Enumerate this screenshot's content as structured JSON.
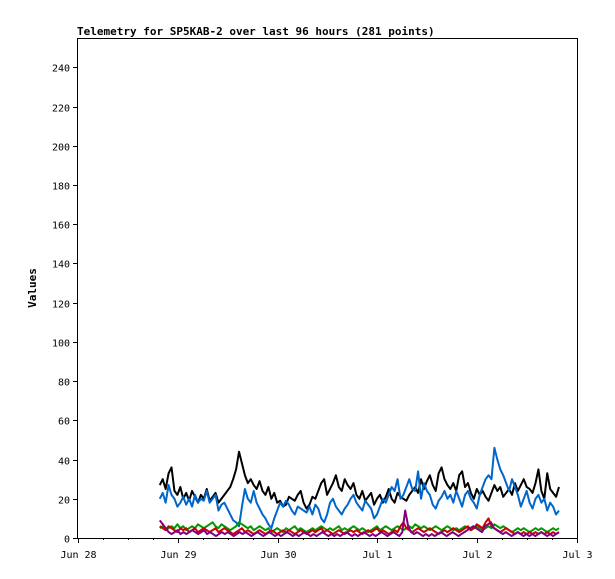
{
  "chart_data": {
    "type": "line",
    "title": "Telemetry for SP5KAB-2 over last 96 hours (281 points)",
    "xlabel": "",
    "ylabel": "Values",
    "ylim": [
      0,
      255
    ],
    "yticks": [
      0,
      20,
      40,
      60,
      80,
      100,
      120,
      140,
      160,
      180,
      200,
      220,
      240
    ],
    "xlim": [
      "Jun 28 00:00",
      "Jul 3 00:00"
    ],
    "xticks": [
      "Jun 28",
      "Jun 29",
      "Jun 30",
      "Jul 1",
      "Jul 2",
      "Jul 3"
    ],
    "grid": false,
    "legend": "none",
    "series": [
      {
        "color": "#000000",
        "x_start": "Jun 28 19:40",
        "x_end": "Jul 2 19:40",
        "values": [
          27,
          30,
          25,
          33,
          36,
          24,
          22,
          26,
          20,
          23,
          19,
          24,
          21,
          18,
          22,
          20,
          25,
          19,
          21,
          23,
          18,
          20,
          22,
          24,
          26,
          30,
          35,
          44,
          38,
          32,
          28,
          30,
          27,
          25,
          29,
          24,
          22,
          26,
          20,
          23,
          18,
          19,
          16,
          17,
          21,
          20,
          19,
          22,
          24,
          18,
          15,
          17,
          21,
          20,
          24,
          28,
          30,
          22,
          25,
          28,
          32,
          26,
          24,
          30,
          27,
          25,
          28,
          22,
          20,
          24,
          19,
          21,
          23,
          17,
          20,
          22,
          18,
          21,
          25,
          20,
          18,
          23,
          21,
          20,
          19,
          22,
          24,
          26,
          23,
          30,
          25,
          29,
          32,
          27,
          24,
          33,
          36,
          30,
          27,
          25,
          28,
          24,
          32,
          34,
          26,
          28,
          23,
          20,
          25,
          22,
          24,
          21,
          19,
          23,
          27,
          24,
          26,
          21,
          23,
          25,
          22,
          28,
          24,
          27,
          30,
          26,
          25,
          23,
          28,
          35,
          24,
          20,
          33,
          25,
          23,
          21,
          26
        ]
      },
      {
        "color": "#0066cc",
        "x_start": "Jun 28 19:40",
        "x_end": "Jul 2 19:40",
        "values": [
          20,
          23,
          18,
          27,
          22,
          20,
          16,
          18,
          21,
          17,
          20,
          16,
          22,
          18,
          20,
          19,
          24,
          18,
          20,
          22,
          14,
          17,
          18,
          15,
          12,
          9,
          8,
          6,
          16,
          25,
          20,
          18,
          24,
          18,
          15,
          12,
          10,
          7,
          5,
          10,
          14,
          18,
          16,
          19,
          17,
          14,
          12,
          16,
          15,
          14,
          13,
          16,
          12,
          17,
          15,
          10,
          8,
          12,
          18,
          20,
          16,
          14,
          12,
          15,
          17,
          20,
          22,
          18,
          16,
          14,
          19,
          17,
          15,
          10,
          12,
          16,
          20,
          18,
          22,
          26,
          24,
          30,
          20,
          22,
          26,
          30,
          25,
          24,
          34,
          20,
          28,
          24,
          22,
          17,
          15,
          19,
          21,
          24,
          20,
          22,
          18,
          24,
          20,
          16,
          22,
          24,
          20,
          18,
          15,
          22,
          26,
          30,
          32,
          30,
          46,
          40,
          35,
          32,
          28,
          24,
          30,
          26,
          22,
          16,
          20,
          24,
          18,
          15,
          20,
          22,
          18,
          20,
          14,
          18,
          16,
          12,
          14
        ]
      },
      {
        "color": "#009900",
        "x_start": "Jun 28 19:40",
        "x_end": "Jul 2 19:40",
        "values": [
          5,
          6,
          4,
          5,
          6,
          5,
          7,
          5,
          6,
          4,
          5,
          6,
          5,
          7,
          6,
          5,
          6,
          7,
          8,
          6,
          5,
          7,
          6,
          5,
          4,
          5,
          6,
          8,
          7,
          6,
          5,
          6,
          4,
          5,
          6,
          5,
          4,
          5,
          3,
          4,
          5,
          4,
          3,
          5,
          4,
          5,
          6,
          4,
          5,
          4,
          3,
          4,
          5,
          4,
          5,
          6,
          5,
          4,
          5,
          4,
          5,
          6,
          4,
          5,
          4,
          5,
          6,
          5,
          4,
          5,
          4,
          3,
          4,
          5,
          6,
          4,
          5,
          6,
          5,
          4,
          5,
          6,
          5,
          4,
          5,
          6,
          5,
          7,
          6,
          5,
          6,
          5,
          4,
          5,
          6,
          5,
          4,
          5,
          6,
          5,
          4,
          5,
          4,
          5,
          6,
          5,
          4,
          5,
          6,
          5,
          4,
          5,
          6,
          5,
          7,
          6,
          5,
          6,
          5,
          4,
          3,
          4,
          5,
          4,
          5,
          4,
          3,
          4,
          5,
          4,
          5,
          4,
          3,
          4,
          5,
          4,
          5
        ]
      },
      {
        "color": "#cc0000",
        "x_start": "Jun 28 19:40",
        "x_end": "Jul 2 19:40",
        "values": [
          6,
          5,
          4,
          6,
          5,
          4,
          3,
          5,
          4,
          5,
          3,
          4,
          5,
          3,
          4,
          5,
          4,
          3,
          4,
          5,
          3,
          4,
          5,
          4,
          3,
          2,
          3,
          4,
          5,
          3,
          4,
          3,
          2,
          3,
          4,
          3,
          2,
          3,
          4,
          3,
          2,
          3,
          4,
          3,
          4,
          3,
          2,
          3,
          4,
          3,
          2,
          3,
          4,
          3,
          4,
          5,
          3,
          4,
          3,
          2,
          3,
          4,
          3,
          2,
          3,
          4,
          3,
          4,
          3,
          2,
          3,
          4,
          3,
          4,
          5,
          3,
          4,
          3,
          2,
          3,
          4,
          3,
          6,
          8,
          5,
          4,
          3,
          4,
          5,
          4,
          3,
          4,
          5,
          4,
          3,
          2,
          3,
          4,
          3,
          4,
          5,
          4,
          3,
          4,
          5,
          6,
          4,
          5,
          7,
          6,
          5,
          8,
          10,
          6,
          5,
          4,
          3,
          4,
          5,
          4,
          3,
          2,
          3,
          2,
          3,
          2,
          3,
          2,
          3,
          2,
          3,
          2,
          3,
          2,
          3,
          2,
          3
        ]
      },
      {
        "color": "#800080",
        "x_start": "Jun 28 19:40",
        "x_end": "Jul 2 19:40",
        "values": [
          9,
          7,
          5,
          3,
          2,
          3,
          4,
          2,
          3,
          2,
          3,
          4,
          3,
          2,
          3,
          4,
          2,
          3,
          2,
          1,
          2,
          3,
          2,
          3,
          2,
          1,
          2,
          3,
          2,
          3,
          2,
          1,
          2,
          3,
          2,
          1,
          2,
          3,
          2,
          1,
          2,
          1,
          2,
          3,
          2,
          1,
          2,
          1,
          2,
          3,
          2,
          1,
          2,
          1,
          2,
          3,
          2,
          1,
          2,
          1,
          2,
          1,
          2,
          3,
          2,
          1,
          2,
          1,
          2,
          3,
          2,
          1,
          2,
          1,
          2,
          3,
          2,
          1,
          2,
          3,
          2,
          1,
          3,
          14,
          6,
          3,
          2,
          3,
          2,
          1,
          2,
          1,
          2,
          1,
          2,
          3,
          2,
          1,
          2,
          3,
          2,
          1,
          2,
          3,
          4,
          5,
          6,
          5,
          4,
          3,
          6,
          7,
          8,
          5,
          4,
          3,
          2,
          3,
          2,
          1,
          2,
          3,
          2,
          1,
          2,
          1,
          2,
          1,
          2,
          3,
          2,
          1,
          2,
          1,
          2,
          3
        ]
      }
    ]
  }
}
